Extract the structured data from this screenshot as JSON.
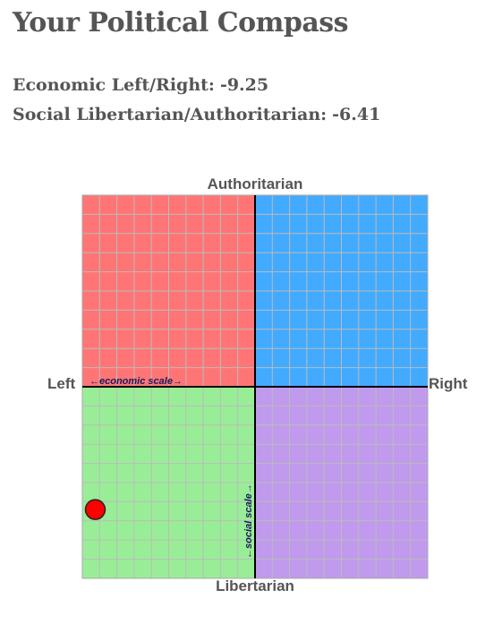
{
  "page": {
    "title": "Your Political Compass"
  },
  "scores": {
    "economic_label": "Economic Left/Right:",
    "economic_value": "-9.25",
    "social_label": "Social Libertarian/Authoritarian:",
    "social_value": "-6.41"
  },
  "chart_data": {
    "type": "scatter",
    "title": "",
    "axis_labels": {
      "top": "Authoritarian",
      "bottom": "Libertarian",
      "left": "Left",
      "right": "Right"
    },
    "scale_labels": {
      "economic": "←economic scale→",
      "social": "←social scale→"
    },
    "xlim": [
      -10,
      10
    ],
    "ylim": [
      -10,
      10
    ],
    "grid": true,
    "grid_step": 1,
    "quadrants": {
      "authoritarian_left": "#ff7575",
      "authoritarian_right": "#42aaff",
      "libertarian_left": "#9aed97",
      "libertarian_right": "#c09aec"
    },
    "points": [
      {
        "x": -9.25,
        "y": -6.41,
        "color": "#ff0000"
      }
    ]
  }
}
